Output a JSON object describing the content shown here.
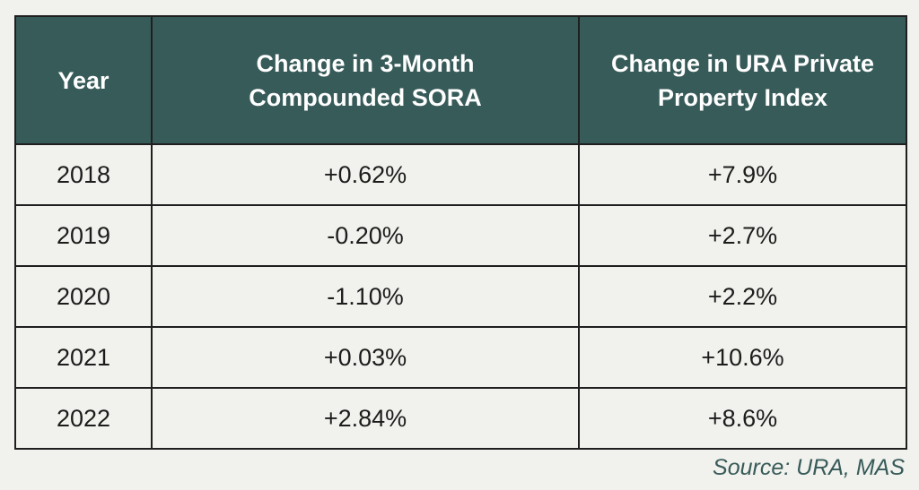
{
  "chart_data": {
    "type": "table",
    "columns": [
      {
        "lines": [
          "Year"
        ]
      },
      {
        "lines": [
          "Change in 3-Month",
          "Compounded SORA"
        ]
      },
      {
        "lines": [
          "Change in URA Private",
          "Property Index"
        ]
      }
    ],
    "rows": [
      [
        "2018",
        "+0.62%",
        "+7.9%"
      ],
      [
        "2019",
        "-0.20%",
        "+2.7%"
      ],
      [
        "2020",
        "-1.10%",
        "+2.2%"
      ],
      [
        "2021",
        "+0.03%",
        "+10.6%"
      ],
      [
        "2022",
        "+2.84%",
        "+8.6%"
      ]
    ],
    "source": "Source: URA, MAS"
  },
  "colors": {
    "header_bg": "#375b59",
    "header_text": "#ffffff",
    "body_bg": "#f1f1ed",
    "border": "#1f1f1f",
    "source_text": "#375b59"
  }
}
